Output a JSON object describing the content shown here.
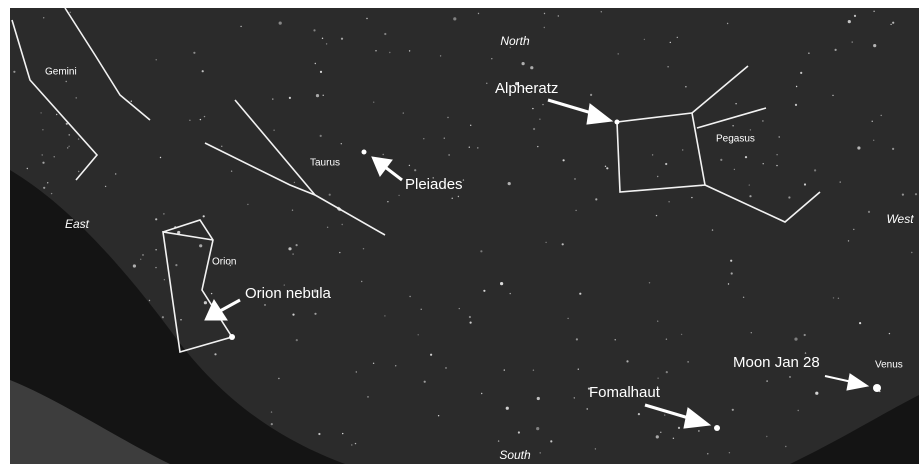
{
  "compass": {
    "north": "North",
    "south": "South",
    "east": "East",
    "west": "West"
  },
  "constellations": {
    "gemini": "Gemini",
    "taurus": "Taurus",
    "orion": "Orion",
    "pegasus": "Pegasus"
  },
  "annotations": {
    "pleiades": "Pleiades",
    "alpheratz": "Alpheratz",
    "orion_nebula": "Orion nebula",
    "moon": "Moon Jan 28",
    "venus": "Venus",
    "fomalhaut": "Fomalhaut"
  }
}
